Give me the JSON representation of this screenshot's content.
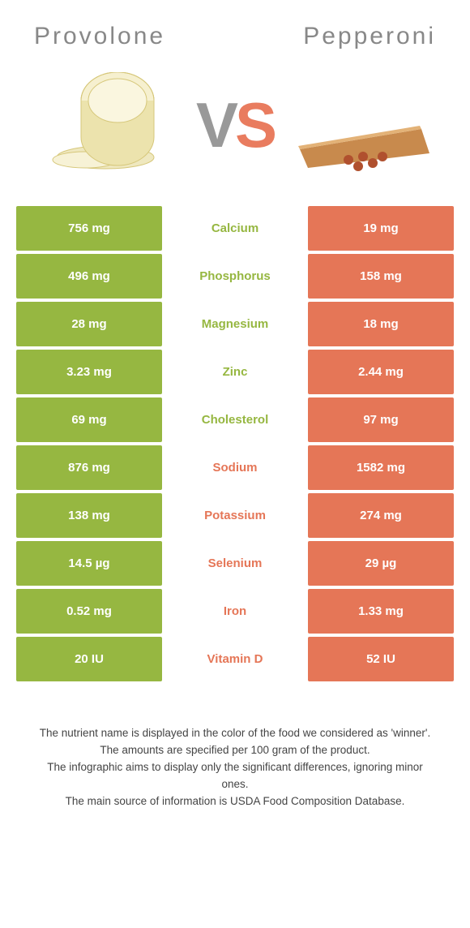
{
  "header": {
    "left": "Provolone",
    "right": "Pepperoni"
  },
  "vs": {
    "v": "V",
    "s": "S"
  },
  "colors": {
    "left_bar": "#96b741",
    "right_bar": "#e57657",
    "text_green": "#96b741",
    "text_orange": "#e57657",
    "header": "#888888",
    "background": "#ffffff"
  },
  "rows": [
    {
      "left": "756 mg",
      "label": "Calcium",
      "right": "19 mg",
      "winner": "g"
    },
    {
      "left": "496 mg",
      "label": "Phosphorus",
      "right": "158 mg",
      "winner": "g"
    },
    {
      "left": "28 mg",
      "label": "Magnesium",
      "right": "18 mg",
      "winner": "g"
    },
    {
      "left": "3.23 mg",
      "label": "Zinc",
      "right": "2.44 mg",
      "winner": "g"
    },
    {
      "left": "69 mg",
      "label": "Cholesterol",
      "right": "97 mg",
      "winner": "g"
    },
    {
      "left": "876 mg",
      "label": "Sodium",
      "right": "1582 mg",
      "winner": "o"
    },
    {
      "left": "138 mg",
      "label": "Potassium",
      "right": "274 mg",
      "winner": "o"
    },
    {
      "left": "14.5 µg",
      "label": "Selenium",
      "right": "29 µg",
      "winner": "o"
    },
    {
      "left": "0.52 mg",
      "label": "Iron",
      "right": "1.33 mg",
      "winner": "o"
    },
    {
      "left": "20 IU",
      "label": "Vitamin D",
      "right": "52 IU",
      "winner": "o"
    }
  ],
  "footnotes": {
    "l1": "The nutrient name is displayed in the color of the food we considered as 'winner'.",
    "l2": "The amounts are specified per 100 gram of the product.",
    "l3": "The infographic aims to display only the significant differences, ignoring minor ones.",
    "l4": "The main source of information is USDA Food Composition Database."
  }
}
